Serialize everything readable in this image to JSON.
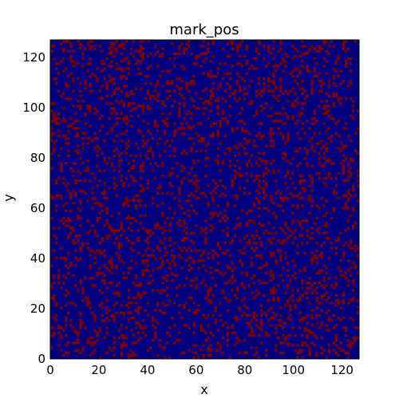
{
  "chart_data": {
    "type": "heatmap",
    "title": "mark_pos",
    "xlabel": "x",
    "ylabel": "y",
    "xlim": [
      0,
      127
    ],
    "ylim": [
      0,
      127
    ],
    "grid": false,
    "x_ticks": [
      0,
      20,
      40,
      60,
      80,
      100,
      120
    ],
    "y_ticks": [
      0,
      20,
      40,
      60,
      80,
      100,
      120
    ],
    "x_tick_labels": [
      "0",
      "20",
      "40",
      "60",
      "80",
      "100",
      "120"
    ],
    "y_tick_labels": [
      "0",
      "20",
      "40",
      "60",
      "80",
      "100",
      "120"
    ],
    "grid_size": [
      128,
      128
    ],
    "value_levels": [
      0,
      1
    ],
    "marked_fraction": 0.17,
    "colors": {
      "unmarked": "#00007f",
      "marked": "#7f0000"
    }
  }
}
